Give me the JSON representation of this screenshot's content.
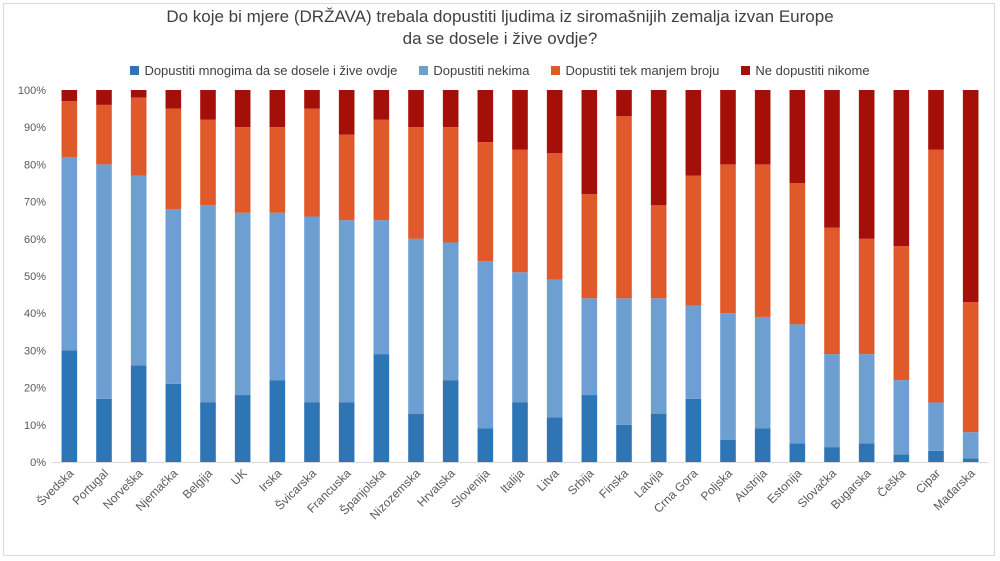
{
  "chart_data": {
    "type": "bar",
    "stacked": true,
    "title_line1": "Do koje bi mjere (DRŽAVA) trebala dopustiti ljudima iz siromašnijih zemalja izvan Europe",
    "title_line2": "da se dosele i žive ovdje?",
    "ylim": [
      0,
      100
    ],
    "yticks": [
      "0%",
      "10%",
      "20%",
      "30%",
      "40%",
      "50%",
      "60%",
      "70%",
      "80%",
      "90%",
      "100%"
    ],
    "grid": false,
    "legend_position": "top",
    "categories": [
      "Švedska",
      "Portugal",
      "Norveška",
      "Njemačka",
      "Belgija",
      "UK",
      "Irska",
      "Švicarska",
      "Francuska",
      "Španjolska",
      "Nizozemska",
      "Hrvatska",
      "Slovenija",
      "Italija",
      "Litva",
      "Srbija",
      "Finska",
      "Latvija",
      "Crna Gora",
      "Poljska",
      "Austrija",
      "Estonija",
      "Slovačka",
      "Bugarska",
      "Češka",
      "Cipar",
      "Mađarska"
    ],
    "series": [
      {
        "name": "Dopustiti mnogima da se dosele i žive ovdje",
        "color": "#2e75b6",
        "values": [
          30,
          17,
          26,
          21,
          16,
          18,
          22,
          16,
          16,
          29,
          13,
          22,
          9,
          16,
          12,
          18,
          10,
          13,
          17,
          6,
          9,
          5,
          4,
          5,
          2,
          3,
          1
        ]
      },
      {
        "name": "Dopustiti nekima",
        "color": "#6d9fd3",
        "values": [
          52,
          63,
          51,
          47,
          53,
          49,
          45,
          50,
          49,
          36,
          47,
          37,
          45,
          35,
          37,
          26,
          34,
          31,
          25,
          34,
          30,
          32,
          25,
          24,
          20,
          13,
          7
        ]
      },
      {
        "name": "Dopustiti tek manjem broju",
        "color": "#e0592b",
        "values": [
          15,
          16,
          21,
          27,
          23,
          23,
          23,
          29,
          23,
          27,
          30,
          31,
          32,
          33,
          34,
          28,
          49,
          25,
          35,
          40,
          41,
          38,
          34,
          31,
          36,
          68,
          35
        ]
      },
      {
        "name": "Ne dopustiti nikome",
        "color": "#a50f0a",
        "values": [
          3,
          4,
          2,
          5,
          8,
          10,
          10,
          5,
          12,
          8,
          10,
          10,
          14,
          16,
          17,
          28,
          7,
          31,
          23,
          20,
          20,
          25,
          37,
          40,
          42,
          16,
          57
        ]
      }
    ]
  }
}
